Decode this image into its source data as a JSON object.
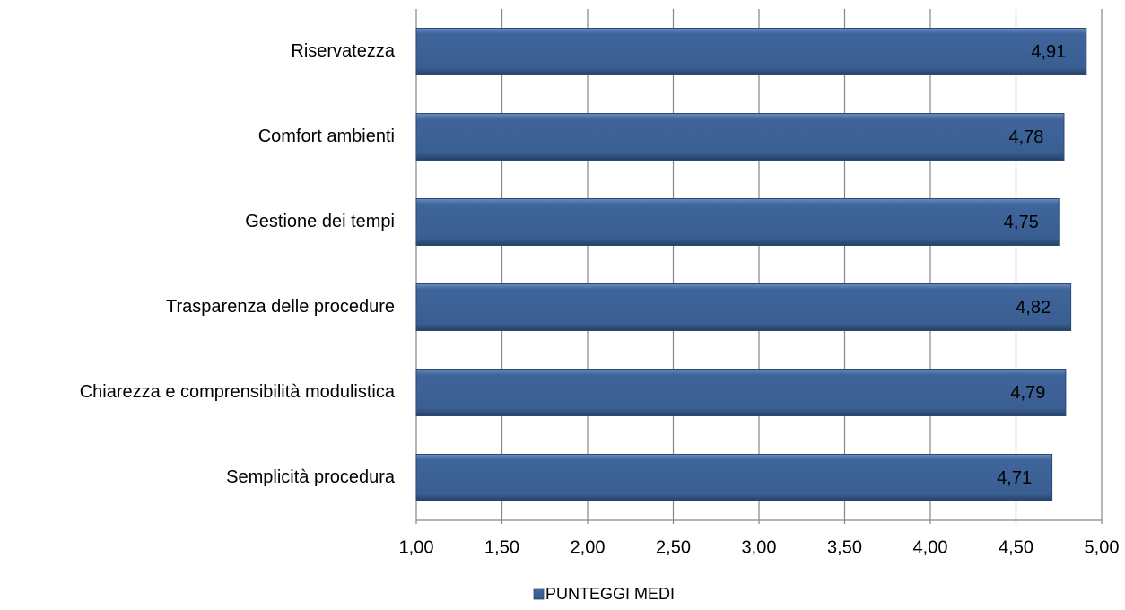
{
  "chart_data": {
    "type": "bar",
    "orientation": "horizontal",
    "categories": [
      "Riservatezza",
      "Comfort ambienti",
      "Gestione dei tempi",
      "Trasparenza delle procedure",
      "Chiarezza e comprensibilità modulistica",
      "Semplicità procedura"
    ],
    "series": [
      {
        "name": "PUNTEGGI MEDI",
        "color": "#3d6297",
        "values": [
          4.91,
          4.78,
          4.75,
          4.82,
          4.79,
          4.71
        ],
        "value_labels": [
          "4,91",
          "4,78",
          "4,75",
          "4,82",
          "4,79",
          "4,71"
        ]
      }
    ],
    "xlim": [
      1,
      5
    ],
    "xticks": [
      {
        "value": 1,
        "label": "1,00"
      },
      {
        "value": 1.5,
        "label": "1,50"
      },
      {
        "value": 2,
        "label": "2,00"
      },
      {
        "value": 2.5,
        "label": "2,50"
      },
      {
        "value": 3,
        "label": "3,00"
      },
      {
        "value": 3.5,
        "label": "3,50"
      },
      {
        "value": 4,
        "label": "4,00"
      },
      {
        "value": 4.5,
        "label": "4,50"
      },
      {
        "value": 5,
        "label": "5,00"
      }
    ],
    "grid": true,
    "legend": "bottom"
  }
}
